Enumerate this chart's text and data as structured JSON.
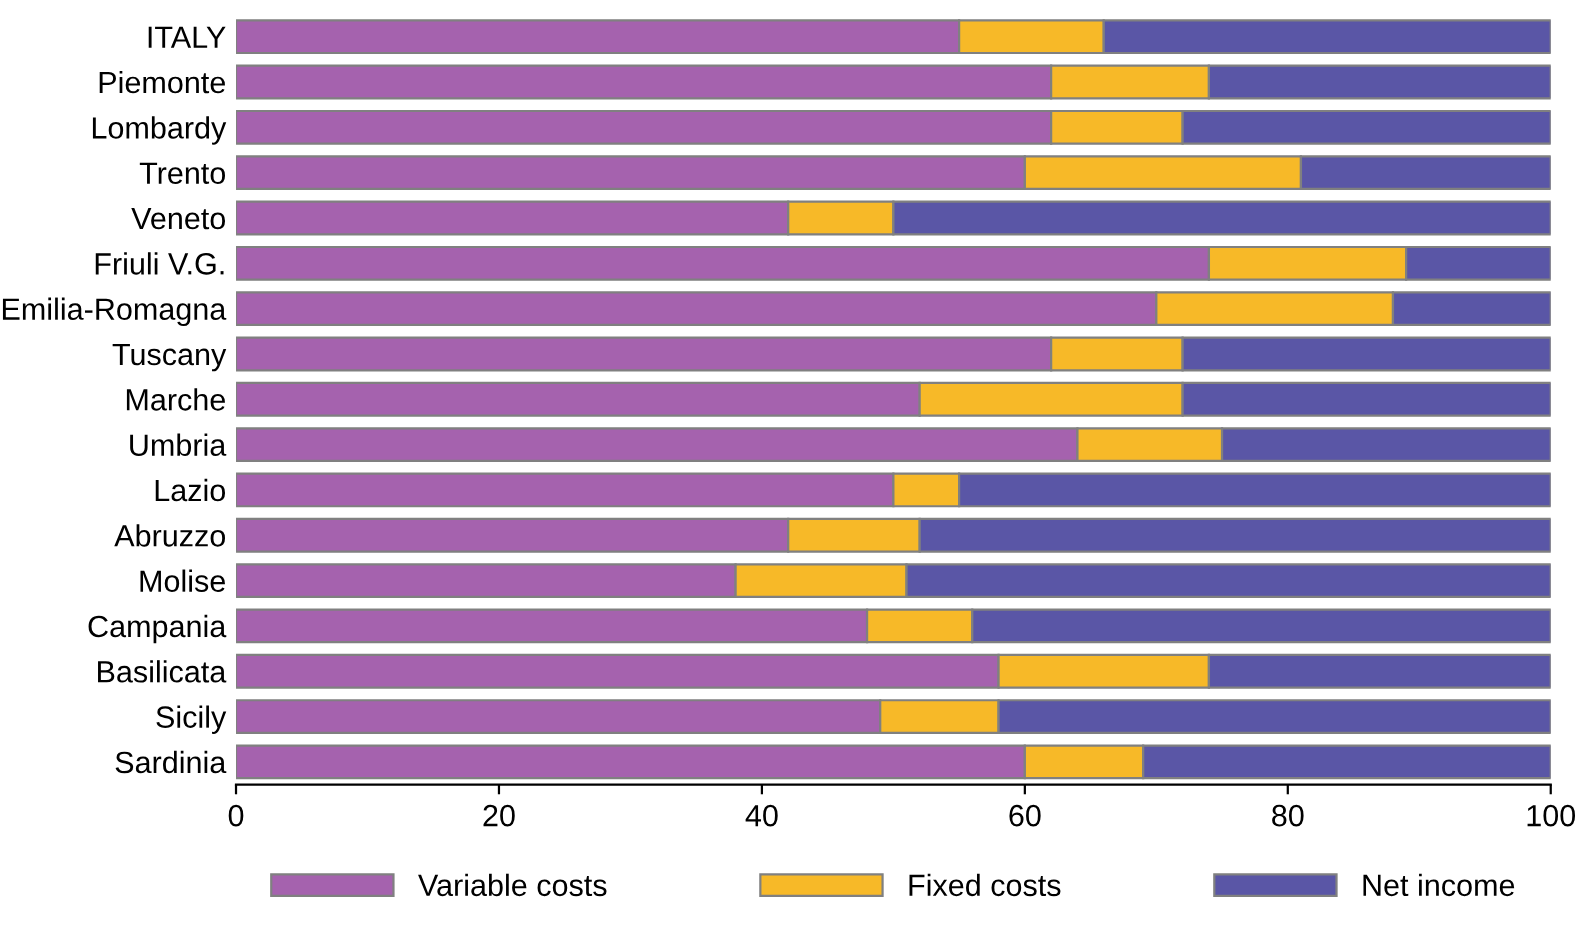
{
  "chart_data": {
    "type": "bar",
    "orientation": "horizontal",
    "stacked": true,
    "categories": [
      "ITALY",
      "Piemonte",
      "Lombardy",
      "Trento",
      "Veneto",
      "Friuli V.G.",
      "Emilia-Romagna",
      "Tuscany",
      "Marche",
      "Umbria",
      "Lazio",
      "Abruzzo",
      "Molise",
      "Campania",
      "Basilicata",
      "Sicily",
      "Sardinia"
    ],
    "series": [
      {
        "name": "Variable costs",
        "color": "#a562ae",
        "values": [
          55,
          62,
          62,
          60,
          42,
          74,
          70,
          62,
          52,
          64,
          50,
          42,
          38,
          48,
          58,
          49,
          60
        ]
      },
      {
        "name": "Fixed costs",
        "color": "#f7b928",
        "values": [
          11,
          12,
          10,
          21,
          8,
          15,
          18,
          10,
          20,
          11,
          5,
          10,
          13,
          8,
          16,
          9,
          9
        ]
      },
      {
        "name": "Net income",
        "color": "#5a56a6",
        "values": [
          34,
          26,
          28,
          19,
          50,
          11,
          12,
          28,
          28,
          25,
          45,
          48,
          49,
          44,
          26,
          42,
          31
        ]
      }
    ],
    "xlim": [
      0,
      100
    ],
    "xticks": [
      0,
      20,
      40,
      60,
      80,
      100
    ],
    "grid": false,
    "legend": "bottom"
  }
}
